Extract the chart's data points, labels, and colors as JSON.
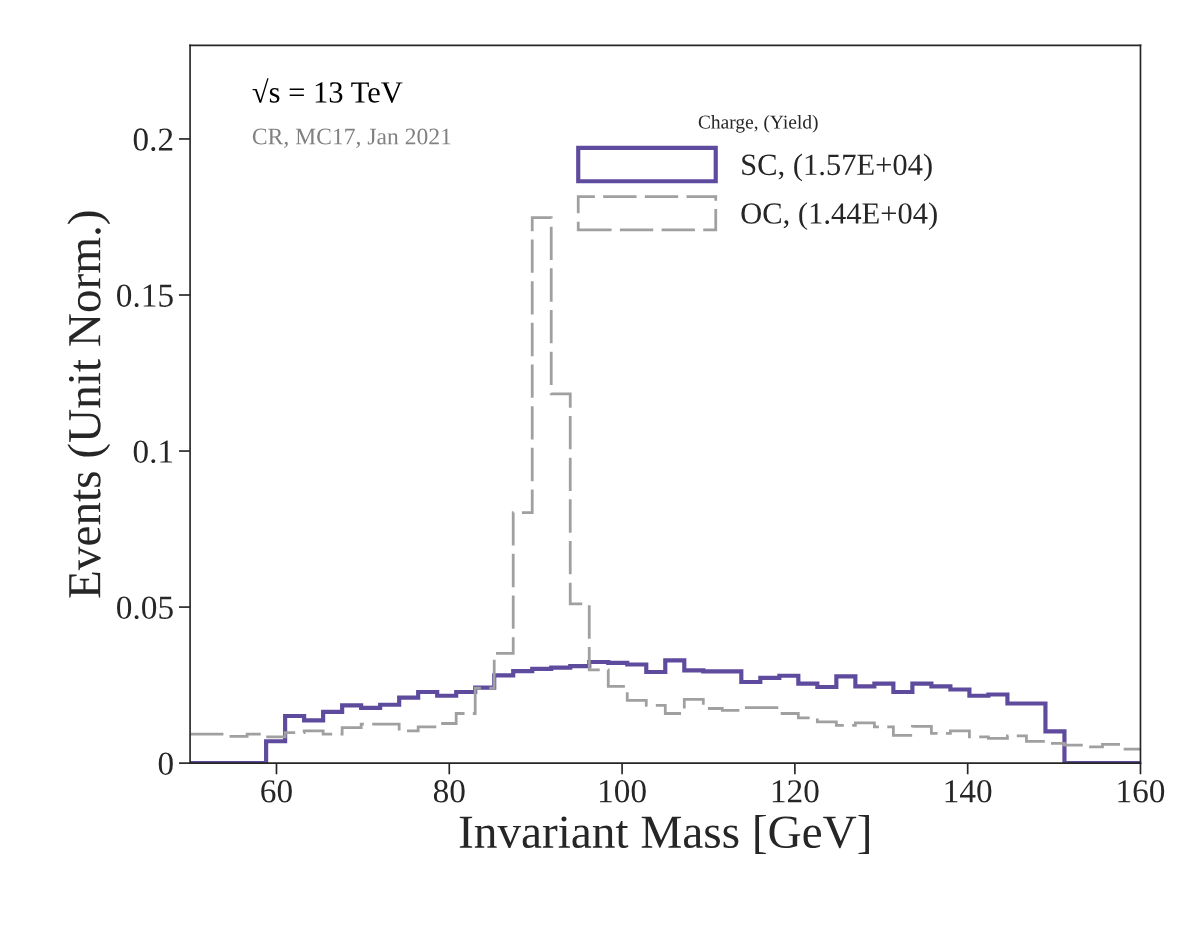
{
  "chart_data": {
    "type": "histogram",
    "xlabel": "Invariant Mass [GeV]",
    "ylabel": "Events (Unit Norm.)",
    "legend_title": "Charge, (Yield)",
    "legend": "top right",
    "annotations": [
      "√s = 13 TeV",
      "CR, MC17, Jan 2021"
    ],
    "bins": [
      50,
      52.2,
      54.4,
      56.6,
      58.8,
      61,
      63.2,
      65.4,
      67.6,
      69.8,
      72,
      74.2,
      76.4,
      78.6,
      80.8,
      83,
      85.2,
      87.4,
      89.6,
      91.8,
      94,
      96.2,
      98.4,
      100.6,
      102.8,
      105,
      107.2,
      109.4,
      111.6,
      113.8,
      116,
      118.2,
      120.4,
      122.6,
      124.8,
      127,
      129.2,
      131.4,
      133.6,
      135.8,
      138,
      140.2,
      142.4,
      144.6,
      146.8,
      149,
      151.2,
      153.4,
      155.6,
      157.8,
      160
    ],
    "series": [
      {
        "name": "SC, (1.57E+04)",
        "color": "#5e4b9e",
        "line_style": "solid",
        "values": [
          0,
          0,
          0,
          0,
          0.007,
          0.0151,
          0.0137,
          0.0164,
          0.0185,
          0.0177,
          0.0187,
          0.021,
          0.0228,
          0.0216,
          0.0228,
          0.0242,
          0.0281,
          0.0295,
          0.0302,
          0.0306,
          0.0311,
          0.0324,
          0.0321,
          0.0316,
          0.0292,
          0.0329,
          0.0297,
          0.0294,
          0.0294,
          0.026,
          0.0273,
          0.028,
          0.0255,
          0.0244,
          0.0278,
          0.0246,
          0.0255,
          0.0228,
          0.0255,
          0.0246,
          0.0236,
          0.0216,
          0.022,
          0.0191,
          0.0191,
          0.0102,
          0,
          0,
          0,
          0
        ]
      },
      {
        "name": "OC, (1.44E+04)",
        "color": "#a0a0a0",
        "line_style": "dashed",
        "values": [
          0.0093,
          0.0093,
          0.0086,
          0.0093,
          0.0084,
          0.0098,
          0.0103,
          0.0093,
          0.0114,
          0.0125,
          0.0125,
          0.0103,
          0.0116,
          0.0127,
          0.0159,
          0.024,
          0.0352,
          0.0803,
          0.1748,
          0.1183,
          0.051,
          0.0299,
          0.0246,
          0.0201,
          0.0185,
          0.0159,
          0.0204,
          0.0175,
          0.0169,
          0.0178,
          0.0178,
          0.0159,
          0.0145,
          0.0132,
          0.0121,
          0.0129,
          0.0116,
          0.0089,
          0.0118,
          0.0095,
          0.0103,
          0.0084,
          0.0079,
          0.0087,
          0.007,
          0.0063,
          0.0058,
          0.0052,
          0.006,
          0.0045
        ]
      }
    ],
    "xlim": [
      50,
      160
    ],
    "xticks": [
      60,
      80,
      100,
      120,
      140,
      160
    ],
    "ylim": [
      0,
      0.23
    ],
    "yticks": [
      0,
      0.05,
      0.1,
      0.15,
      0.2
    ],
    "grid": false
  }
}
